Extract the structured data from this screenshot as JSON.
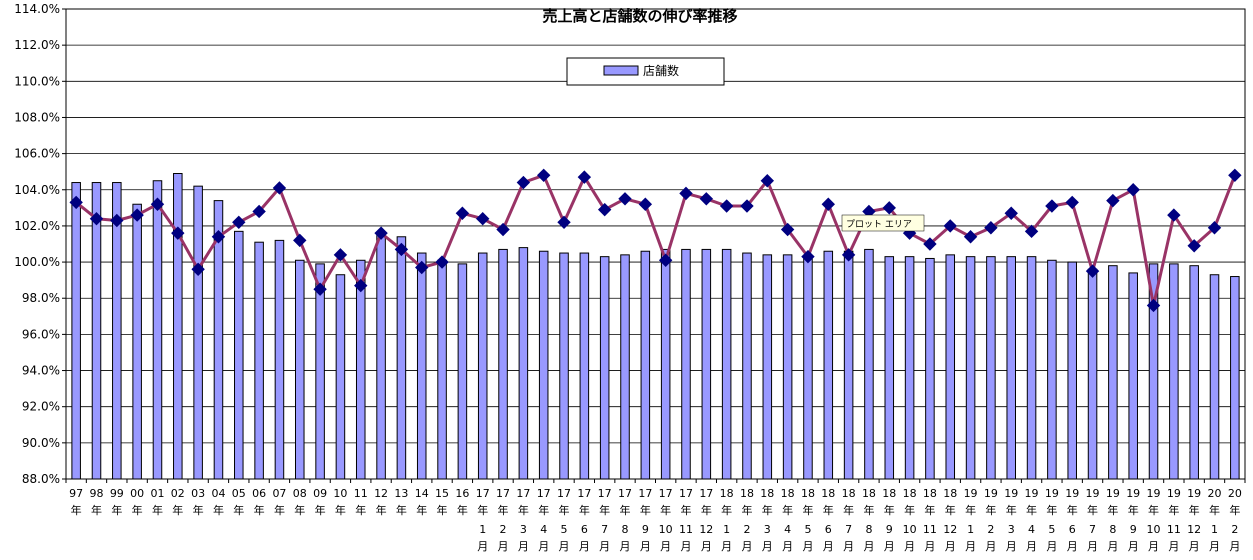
{
  "chart_data": {
    "type": "bar",
    "title": "売上高と店舗数の伸び率推移",
    "ylim": [
      88,
      114
    ],
    "ytick_step": 2,
    "y_tick_format": "{v}%",
    "grid": true,
    "legend_position": "top-center",
    "categories": [
      "97年",
      "98年",
      "99年",
      "00年",
      "01年",
      "02年",
      "03年",
      "04年",
      "05年",
      "06年",
      "07年",
      "08年",
      "09年",
      "10年",
      "11年",
      "12年",
      "13年",
      "14年",
      "15年",
      "16年",
      "17年1月",
      "17年2月",
      "17年3月",
      "17年4月",
      "17年5月",
      "17年6月",
      "17年7月",
      "17年8月",
      "17年9月",
      "17年10月",
      "17年11月",
      "17年12月",
      "18年1月",
      "18年2月",
      "18年3月",
      "18年4月",
      "18年5月",
      "18年6月",
      "18年7月",
      "18年8月",
      "18年9月",
      "18年10月",
      "18年11月",
      "18年12月",
      "19年1月",
      "19年2月",
      "19年3月",
      "19年4月",
      "19年5月",
      "19年6月",
      "19年7月",
      "19年8月",
      "19年9月",
      "19年10月",
      "19年11月",
      "19年12月",
      "20年1月",
      "20年2月"
    ],
    "category_labels": [
      [
        "97",
        "年",
        ""
      ],
      [
        "98",
        "年",
        ""
      ],
      [
        "99",
        "年",
        ""
      ],
      [
        "00",
        "年",
        ""
      ],
      [
        "01",
        "年",
        ""
      ],
      [
        "02",
        "年",
        ""
      ],
      [
        "03",
        "年",
        ""
      ],
      [
        "04",
        "年",
        ""
      ],
      [
        "05",
        "年",
        ""
      ],
      [
        "06",
        "年",
        ""
      ],
      [
        "07",
        "年",
        ""
      ],
      [
        "08",
        "年",
        ""
      ],
      [
        "09",
        "年",
        ""
      ],
      [
        "10",
        "年",
        ""
      ],
      [
        "11",
        "年",
        ""
      ],
      [
        "12",
        "年",
        ""
      ],
      [
        "13",
        "年",
        ""
      ],
      [
        "14",
        "年",
        ""
      ],
      [
        "15",
        "年",
        ""
      ],
      [
        "16",
        "年",
        ""
      ],
      [
        "17",
        "年",
        "1",
        "月"
      ],
      [
        "17",
        "年",
        "2",
        "月"
      ],
      [
        "17",
        "年",
        "3",
        "月"
      ],
      [
        "17",
        "年",
        "4",
        "月"
      ],
      [
        "17",
        "年",
        "5",
        "月"
      ],
      [
        "17",
        "年",
        "6",
        "月"
      ],
      [
        "17",
        "年",
        "7",
        "月"
      ],
      [
        "17",
        "年",
        "8",
        "月"
      ],
      [
        "17",
        "年",
        "9",
        "月"
      ],
      [
        "17",
        "年",
        "10",
        "月"
      ],
      [
        "17",
        "年",
        "11",
        "月"
      ],
      [
        "17",
        "年",
        "12",
        "月"
      ],
      [
        "18",
        "年",
        "1",
        "月"
      ],
      [
        "18",
        "年",
        "2",
        "月"
      ],
      [
        "18",
        "年",
        "3",
        "月"
      ],
      [
        "18",
        "年",
        "4",
        "月"
      ],
      [
        "18",
        "年",
        "5",
        "月"
      ],
      [
        "18",
        "年",
        "6",
        "月"
      ],
      [
        "18",
        "年",
        "7",
        "月"
      ],
      [
        "18",
        "年",
        "8",
        "月"
      ],
      [
        "18",
        "年",
        "9",
        "月"
      ],
      [
        "18",
        "年",
        "10",
        "月"
      ],
      [
        "18",
        "年",
        "11",
        "月"
      ],
      [
        "18",
        "年",
        "12",
        "月"
      ],
      [
        "19",
        "年",
        "1",
        "月"
      ],
      [
        "19",
        "年",
        "2",
        "月"
      ],
      [
        "19",
        "年",
        "3",
        "月"
      ],
      [
        "19",
        "年",
        "4",
        "月"
      ],
      [
        "19",
        "年",
        "5",
        "月"
      ],
      [
        "19",
        "年",
        "6",
        "月"
      ],
      [
        "19",
        "年",
        "7",
        "月"
      ],
      [
        "19",
        "年",
        "8",
        "月"
      ],
      [
        "19",
        "年",
        "9",
        "月"
      ],
      [
        "19",
        "年",
        "10",
        "月"
      ],
      [
        "19",
        "年",
        "11",
        "月"
      ],
      [
        "19",
        "年",
        "12",
        "月"
      ],
      [
        "20",
        "年",
        "1",
        "月"
      ],
      [
        "20",
        "年",
        "2",
        "月"
      ]
    ],
    "series": [
      {
        "name": "店舗数",
        "type": "bar",
        "color": "#9999ff",
        "values": [
          104.4,
          104.4,
          104.4,
          103.2,
          104.5,
          104.9,
          104.2,
          103.4,
          101.7,
          101.1,
          101.2,
          100.1,
          99.9,
          99.3,
          100.1,
          101.5,
          101.4,
          100.5,
          100.1,
          99.9,
          100.5,
          100.7,
          100.8,
          100.6,
          100.5,
          100.5,
          100.3,
          100.4,
          100.6,
          100.7,
          100.7,
          100.7,
          100.7,
          100.5,
          100.4,
          100.4,
          100.3,
          100.6,
          100.6,
          100.7,
          100.3,
          100.3,
          100.2,
          100.4,
          100.3,
          100.3,
          100.3,
          100.3,
          100.1,
          100.0,
          99.6,
          99.8,
          99.4,
          99.9,
          99.9,
          99.8,
          99.3,
          99.2
        ]
      },
      {
        "type": "line",
        "color": "#993366",
        "marker_color": "#000080",
        "values": [
          103.3,
          102.4,
          102.3,
          102.6,
          103.2,
          101.6,
          99.6,
          101.4,
          102.2,
          102.8,
          104.1,
          101.2,
          98.5,
          100.4,
          98.7,
          101.6,
          100.7,
          99.7,
          100.0,
          102.7,
          102.4,
          101.8,
          104.4,
          104.8,
          102.2,
          104.7,
          102.9,
          103.5,
          103.2,
          100.1,
          103.8,
          103.5,
          103.1,
          103.1,
          104.5,
          101.8,
          100.3,
          103.2,
          100.4,
          102.8,
          103.0,
          101.6,
          101.0,
          102.0,
          101.4,
          101.9,
          102.7,
          101.7,
          103.1,
          103.3,
          99.5,
          103.4,
          104.0,
          97.6,
          102.6,
          100.9,
          101.9,
          104.8
        ]
      }
    ]
  },
  "tooltip": {
    "text": "プロット エリア"
  }
}
